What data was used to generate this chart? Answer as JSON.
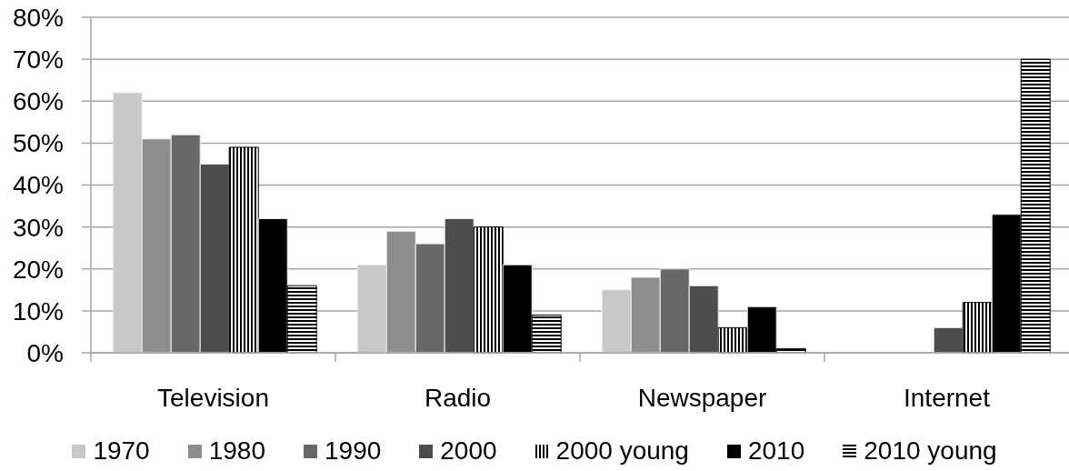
{
  "chart_data": {
    "type": "bar",
    "categories": [
      "Television",
      "Radio",
      "Newspaper",
      "Internet"
    ],
    "series": [
      {
        "name": "1970",
        "color": "#c8c8c8",
        "values": [
          62,
          21,
          15,
          null
        ]
      },
      {
        "name": "1980",
        "color": "#8e8e8e",
        "values": [
          51,
          29,
          18,
          null
        ]
      },
      {
        "name": "1990",
        "color": "#686868",
        "values": [
          52,
          26,
          20,
          null
        ]
      },
      {
        "name": "2000",
        "color": "#4d4d4d",
        "values": [
          45,
          32,
          16,
          6
        ]
      },
      {
        "name": "2000 young",
        "color": "#000000",
        "values": [
          49,
          30,
          6,
          12
        ]
      },
      {
        "name": "2010",
        "color": "#000000",
        "values": [
          32,
          21,
          11,
          33
        ]
      },
      {
        "name": "2010 young",
        "color": "#000000",
        "values": [
          16,
          9,
          1,
          70
        ]
      }
    ],
    "ylim": [
      0,
      80
    ],
    "yticks": [
      {
        "value": 0,
        "label": "0%"
      },
      {
        "value": 10,
        "label": "10%"
      },
      {
        "value": 20,
        "label": "20%"
      },
      {
        "value": 30,
        "label": "30%"
      },
      {
        "value": 40,
        "label": "40%"
      },
      {
        "value": 50,
        "label": "50%"
      },
      {
        "value": 60,
        "label": "60%"
      },
      {
        "value": 70,
        "label": "70%"
      },
      {
        "value": 80,
        "label": "80%"
      }
    ],
    "grid": "y",
    "legend": "bottom"
  }
}
